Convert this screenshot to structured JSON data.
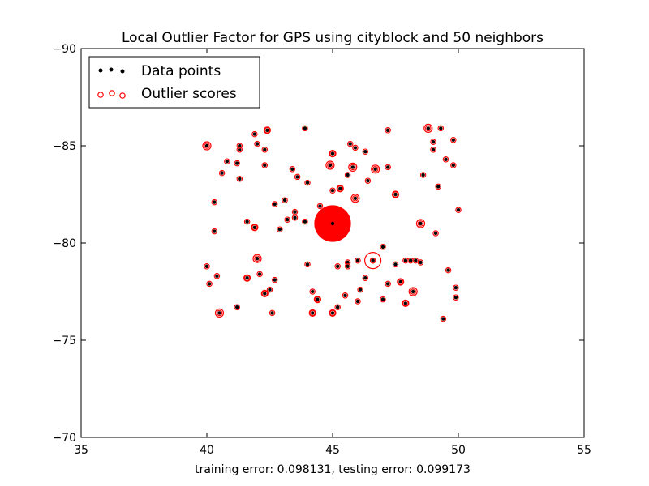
{
  "chart_data": {
    "type": "scatter",
    "title": "Local Outlier Factor for GPS using cityblock and 50 neighbors",
    "xlabel": "training error: 0.098131, testing error: 0.099173",
    "ylabel": "",
    "xlim": [
      35,
      55
    ],
    "ylim": [
      -70,
      -90
    ],
    "y_axis_inverted": true,
    "grid": false,
    "legend_placement": "top-left",
    "xticks": [
      35,
      40,
      45,
      50,
      55
    ],
    "yticks": [
      -90,
      -85,
      -80,
      -75,
      -70
    ],
    "xtick_labels": [
      "35",
      "40",
      "45",
      "50",
      "55"
    ],
    "ytick_labels": [
      "−90",
      "−85",
      "−80",
      "−75",
      "−70"
    ],
    "series": [
      {
        "name": "Data points",
        "color": "#000000",
        "marker": "filled-dot",
        "points": [
          [
            40.0,
            -85.0
          ],
          [
            42.4,
            -85.8
          ],
          [
            43.9,
            -85.9
          ],
          [
            44.9,
            -84.0
          ],
          [
            45.0,
            -84.6
          ],
          [
            46.3,
            -84.7
          ],
          [
            47.2,
            -85.8
          ],
          [
            48.8,
            -85.9
          ],
          [
            49.3,
            -85.9
          ],
          [
            49.8,
            -85.3
          ],
          [
            40.6,
            -83.6
          ],
          [
            40.8,
            -84.2
          ],
          [
            41.3,
            -83.3
          ],
          [
            41.9,
            -85.6
          ],
          [
            42.0,
            -85.1
          ],
          [
            42.3,
            -84.8
          ],
          [
            42.3,
            -84.0
          ],
          [
            41.3,
            -84.8
          ],
          [
            41.2,
            -84.1
          ],
          [
            41.3,
            -85.0
          ],
          [
            43.4,
            -83.8
          ],
          [
            43.6,
            -83.4
          ],
          [
            44.0,
            -83.1
          ],
          [
            45.0,
            -82.7
          ],
          [
            45.3,
            -82.8
          ],
          [
            45.6,
            -83.5
          ],
          [
            45.8,
            -83.9
          ],
          [
            45.7,
            -85.1
          ],
          [
            45.9,
            -84.9
          ],
          [
            46.4,
            -83.2
          ],
          [
            46.7,
            -83.8
          ],
          [
            47.2,
            -83.9
          ],
          [
            47.5,
            -82.5
          ],
          [
            45.9,
            -82.3
          ],
          [
            48.6,
            -83.5
          ],
          [
            49.2,
            -82.9
          ],
          [
            49.5,
            -84.3
          ],
          [
            49.8,
            -84.0
          ],
          [
            49.0,
            -85.2
          ],
          [
            49.0,
            -84.8
          ],
          [
            40.3,
            -82.1
          ],
          [
            40.3,
            -80.6
          ],
          [
            41.6,
            -81.1
          ],
          [
            41.9,
            -80.8
          ],
          [
            42.7,
            -82.0
          ],
          [
            43.1,
            -82.2
          ],
          [
            43.5,
            -81.6
          ],
          [
            43.2,
            -81.2
          ],
          [
            42.9,
            -80.7
          ],
          [
            43.5,
            -81.3
          ],
          [
            43.9,
            -81.1
          ],
          [
            44.5,
            -81.9
          ],
          [
            45.0,
            -81.0
          ],
          [
            48.5,
            -81.0
          ],
          [
            49.1,
            -80.5
          ],
          [
            50.0,
            -81.7
          ],
          [
            40.0,
            -78.8
          ],
          [
            40.1,
            -77.9
          ],
          [
            40.4,
            -78.3
          ],
          [
            41.6,
            -78.2
          ],
          [
            42.0,
            -79.2
          ],
          [
            42.1,
            -78.4
          ],
          [
            42.3,
            -77.4
          ],
          [
            42.5,
            -77.6
          ],
          [
            42.7,
            -78.1
          ],
          [
            44.0,
            -78.9
          ],
          [
            44.2,
            -77.5
          ],
          [
            44.4,
            -77.1
          ],
          [
            45.2,
            -78.8
          ],
          [
            45.6,
            -79.0
          ],
          [
            45.6,
            -78.8
          ],
          [
            46.0,
            -79.1
          ],
          [
            46.1,
            -77.6
          ],
          [
            46.3,
            -78.2
          ],
          [
            46.6,
            -79.1
          ],
          [
            47.0,
            -79.8
          ],
          [
            47.2,
            -77.9
          ],
          [
            47.5,
            -78.9
          ],
          [
            47.7,
            -78.0
          ],
          [
            47.9,
            -79.1
          ],
          [
            48.1,
            -79.1
          ],
          [
            48.3,
            -79.1
          ],
          [
            48.5,
            -79.0
          ],
          [
            49.6,
            -78.6
          ],
          [
            49.9,
            -77.7
          ],
          [
            49.9,
            -77.2
          ],
          [
            45.2,
            -76.7
          ],
          [
            45.5,
            -77.3
          ],
          [
            46.0,
            -77.0
          ],
          [
            47.0,
            -77.1
          ],
          [
            47.9,
            -76.9
          ],
          [
            48.2,
            -77.5
          ],
          [
            44.2,
            -76.4
          ],
          [
            45.0,
            -76.4
          ],
          [
            40.5,
            -76.4
          ],
          [
            41.2,
            -76.7
          ],
          [
            42.6,
            -76.4
          ],
          [
            49.4,
            -76.1
          ],
          [
            46.6,
            -79.1
          ]
        ]
      },
      {
        "name": "Outlier scores",
        "color": "#ff0000",
        "marker": "open-circle",
        "scored_points": [
          [
            45.0,
            -81.0,
            22
          ],
          [
            46.6,
            -79.1,
            10
          ],
          [
            45.9,
            -82.3,
            5
          ],
          [
            46.7,
            -83.8,
            5
          ],
          [
            48.5,
            -81.0,
            5
          ],
          [
            48.2,
            -77.5,
            5
          ],
          [
            40.5,
            -76.4,
            5
          ],
          [
            44.9,
            -84.0,
            5
          ],
          [
            45.8,
            -83.9,
            5
          ],
          [
            48.8,
            -85.9,
            5
          ],
          [
            40.0,
            -85.0,
            5
          ],
          [
            42.0,
            -79.2,
            5
          ],
          [
            47.5,
            -82.5,
            4
          ],
          [
            47.7,
            -78.0,
            4
          ],
          [
            47.9,
            -76.9,
            4
          ],
          [
            44.4,
            -77.1,
            4
          ],
          [
            45.3,
            -82.8,
            4
          ],
          [
            42.4,
            -85.8,
            4
          ],
          [
            41.9,
            -80.8,
            4
          ],
          [
            42.3,
            -77.4,
            4
          ],
          [
            41.6,
            -78.2,
            4
          ],
          [
            44.2,
            -76.4,
            4
          ],
          [
            45.0,
            -76.4,
            4
          ],
          [
            45.0,
            -84.6,
            4
          ]
        ]
      }
    ]
  }
}
